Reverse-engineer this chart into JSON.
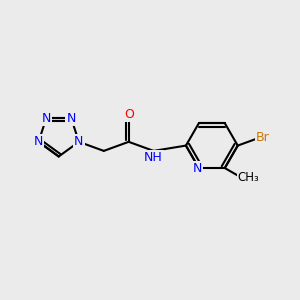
{
  "background_color": "#ebebeb",
  "bond_color": "#000000",
  "atom_colors": {
    "N": "#0000ff",
    "O": "#ff0000",
    "Br": "#cc7700",
    "C": "#000000",
    "H": "#000000"
  },
  "figsize": [
    3.0,
    3.0
  ],
  "dpi": 100
}
